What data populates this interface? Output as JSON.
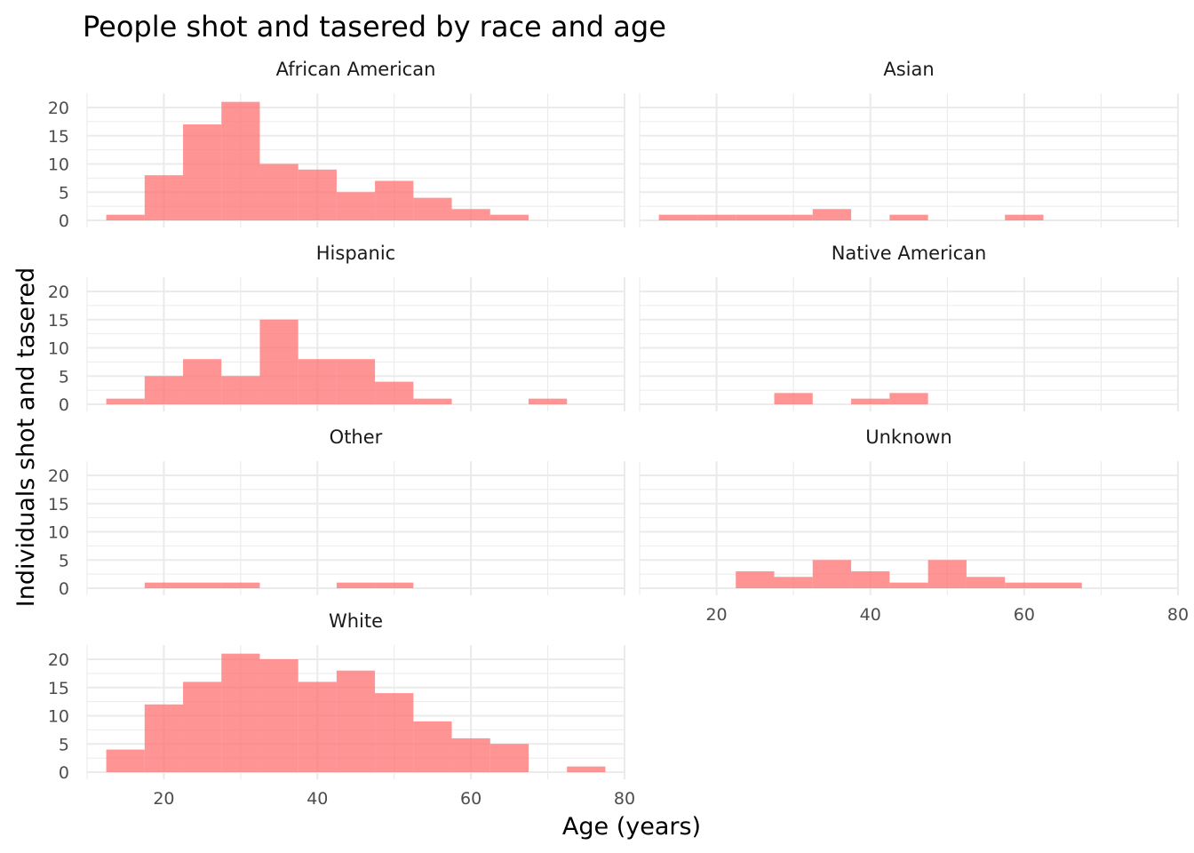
{
  "chart_data": {
    "type": "bar",
    "subtype": "faceted-histogram",
    "title": "People shot and tasered by race and age",
    "xlabel": "Age (years)",
    "ylabel": "Individuals shot and tasered",
    "xlim": [
      10,
      80
    ],
    "ylim": [
      0,
      22
    ],
    "x_ticks": [
      20,
      40,
      60,
      80
    ],
    "y_ticks": [
      0,
      5,
      10,
      15,
      20
    ],
    "bin_width": 5,
    "bin_starts": [
      12.5,
      17.5,
      22.5,
      27.5,
      32.5,
      37.5,
      42.5,
      47.5,
      52.5,
      57.5,
      62.5,
      67.5,
      72.5
    ],
    "bar_color": "#ff6b6b",
    "grid": true,
    "legend": "none",
    "facets": [
      {
        "name": "African American",
        "values": [
          1,
          8,
          17,
          21,
          10,
          9,
          5,
          7,
          4,
          2,
          1,
          0,
          0
        ]
      },
      {
        "name": "Asian",
        "values": [
          1,
          1,
          1,
          1,
          2,
          0,
          1,
          0,
          0,
          1,
          0,
          0,
          0
        ]
      },
      {
        "name": "Hispanic",
        "values": [
          1,
          5,
          8,
          5,
          15,
          8,
          8,
          4,
          1,
          0,
          0,
          1,
          0
        ]
      },
      {
        "name": "Native American",
        "values": [
          0,
          0,
          0,
          2,
          0,
          1,
          2,
          0,
          0,
          0,
          0,
          0,
          0
        ]
      },
      {
        "name": "Other",
        "values": [
          0,
          1,
          1,
          1,
          0,
          0,
          1,
          1,
          0,
          0,
          0,
          0,
          0
        ]
      },
      {
        "name": "Unknown",
        "values": [
          0,
          0,
          3,
          2,
          5,
          3,
          1,
          5,
          2,
          1,
          1,
          0,
          0
        ]
      },
      {
        "name": "White",
        "values": [
          4,
          12,
          16,
          21,
          20,
          16,
          18,
          14,
          9,
          6,
          5,
          0,
          1
        ]
      }
    ]
  }
}
